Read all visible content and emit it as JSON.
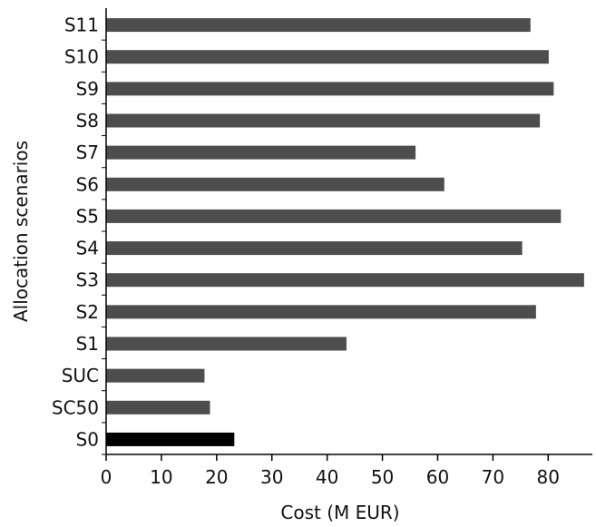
{
  "chart_data": {
    "type": "bar",
    "orientation": "horizontal",
    "title": "",
    "xlabel": "Cost (M EUR)",
    "ylabel": "Allocation scenarios",
    "categories": [
      "S0",
      "SC50",
      "SUC",
      "S1",
      "S2",
      "S3",
      "S4",
      "S5",
      "S6",
      "S7",
      "S8",
      "S9",
      "S10",
      "S11"
    ],
    "values": [
      23.2,
      18.8,
      17.8,
      43.5,
      77.8,
      86.5,
      75.3,
      82.3,
      61.2,
      56.0,
      78.5,
      81.0,
      80.1,
      76.8
    ],
    "xlim": [
      0,
      88
    ],
    "xticks": [
      0,
      10,
      20,
      30,
      40,
      50,
      60,
      70,
      80
    ],
    "grid": false,
    "legend": "none",
    "colors": {
      "bar": "#4d4d4d",
      "highlight_bar": "#000000",
      "highlight_category": "S0",
      "axis": "#000000"
    }
  }
}
